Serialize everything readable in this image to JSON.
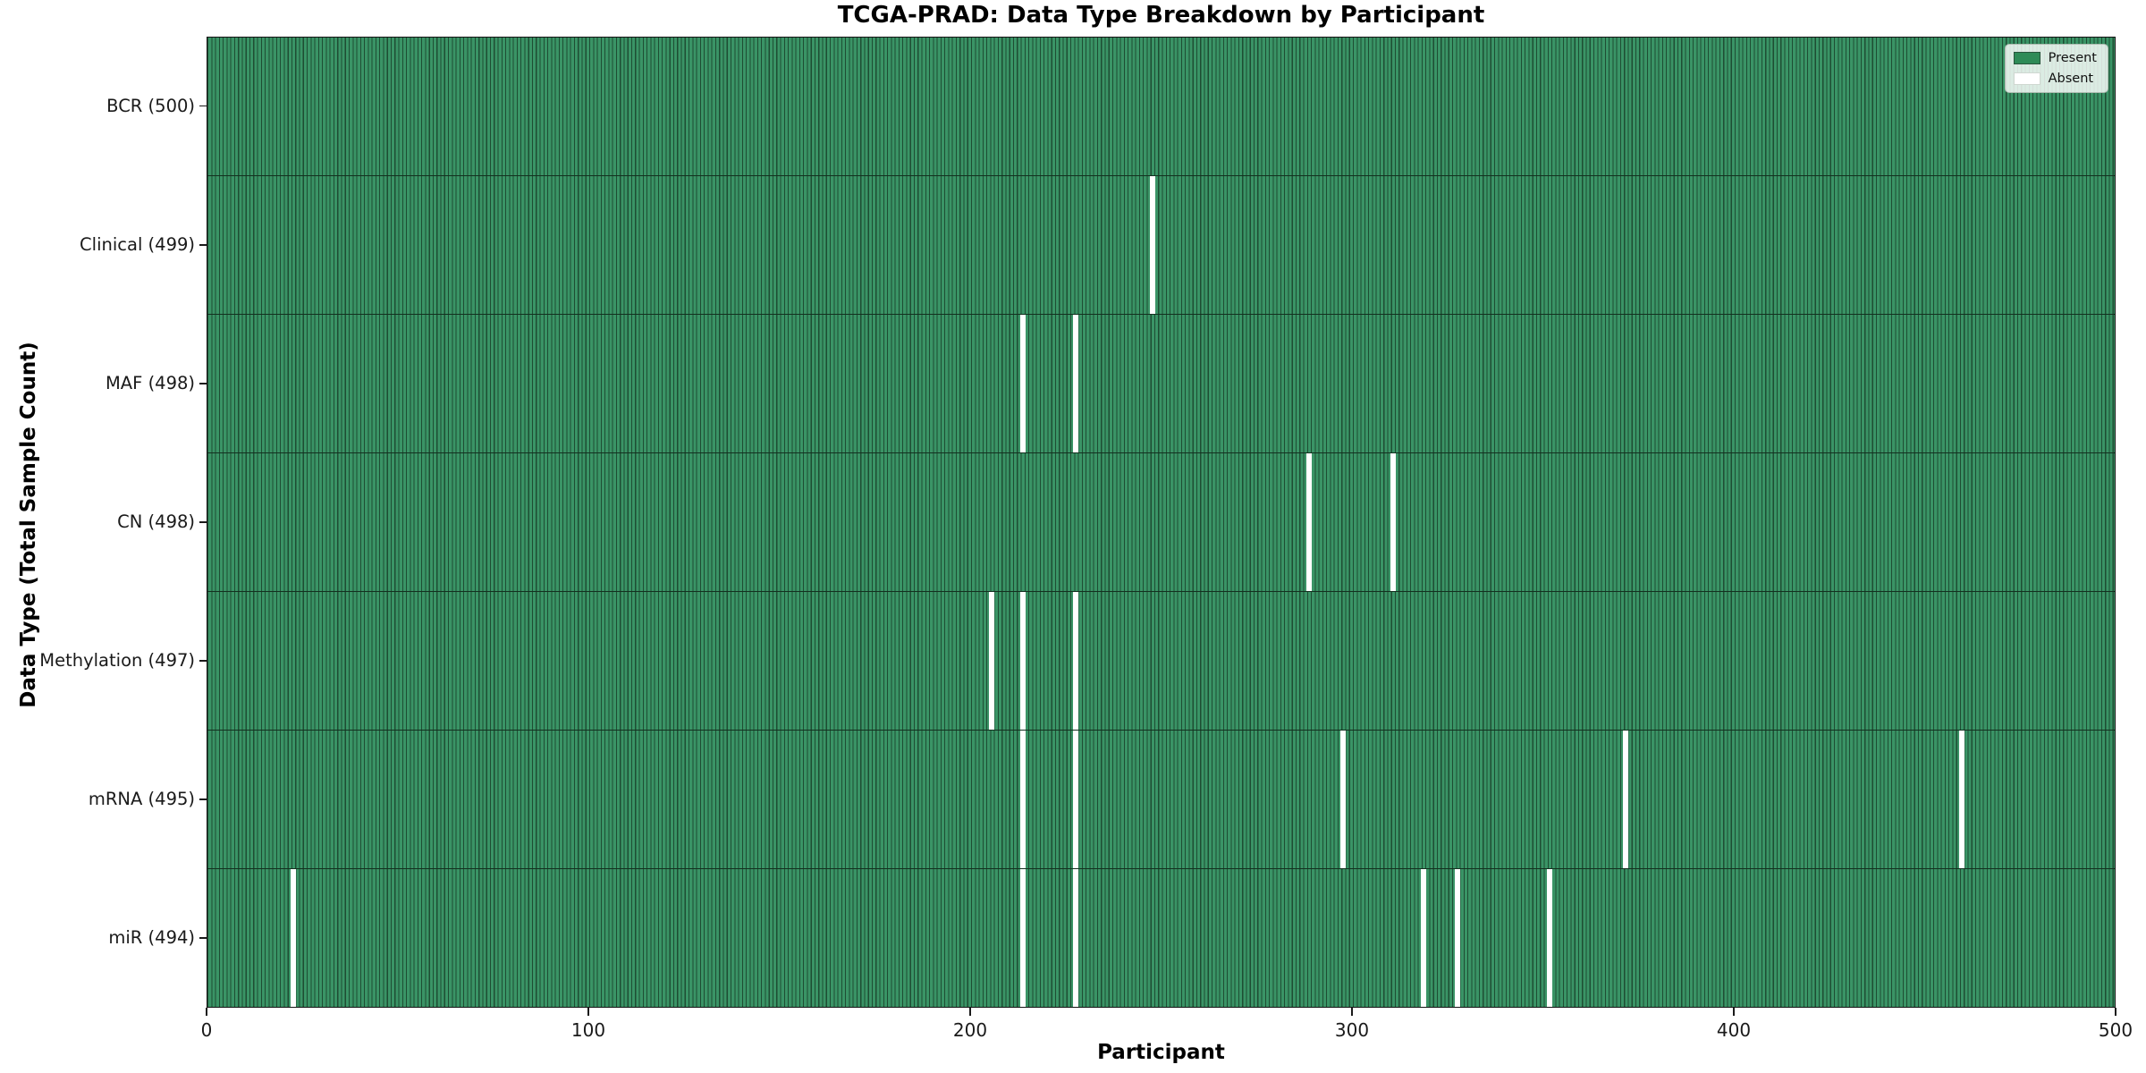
{
  "chart_data": {
    "type": "heatmap",
    "title": "TCGA-PRAD: Data Type Breakdown by Participant",
    "xlabel": "Participant",
    "ylabel": "Data Type (Total Sample Count)",
    "x_range": [
      0,
      500
    ],
    "x_ticks": [
      "0",
      "100",
      "200",
      "300",
      "400",
      "500"
    ],
    "n_participants": 500,
    "grid": false,
    "legend_position": "upper right",
    "legend": [
      {
        "label": "Present",
        "color": "#2E8B57"
      },
      {
        "label": "Absent",
        "color": "#FFFFFF"
      }
    ],
    "rows": [
      {
        "label": "BCR (500)",
        "data_type": "BCR",
        "total": 500,
        "absent_participants": []
      },
      {
        "label": "Clinical (499)",
        "data_type": "Clinical",
        "total": 499,
        "absent_participants": [
          247
        ]
      },
      {
        "label": "MAF (498)",
        "data_type": "MAF",
        "total": 498,
        "absent_participants": [
          213,
          227
        ]
      },
      {
        "label": "CN (498)",
        "data_type": "CN",
        "total": 498,
        "absent_participants": [
          288,
          310
        ]
      },
      {
        "label": "Methylation (497)",
        "data_type": "Methylation",
        "total": 497,
        "absent_participants": [
          205,
          213,
          227
        ]
      },
      {
        "label": "mRNA (495)",
        "data_type": "mRNA",
        "total": 495,
        "absent_participants": [
          213,
          227,
          297,
          371,
          459
        ]
      },
      {
        "label": "miR (494)",
        "data_type": "miR",
        "total": 494,
        "absent_participants": [
          22,
          213,
          227,
          318,
          327,
          351
        ]
      }
    ],
    "colors": {
      "present_fill": "#3A9466",
      "cell_edge": "#1E4D33",
      "absent_fill": "#FFFFFF",
      "row_divider": "#13301f",
      "legend_present": "#2E8B57"
    }
  }
}
